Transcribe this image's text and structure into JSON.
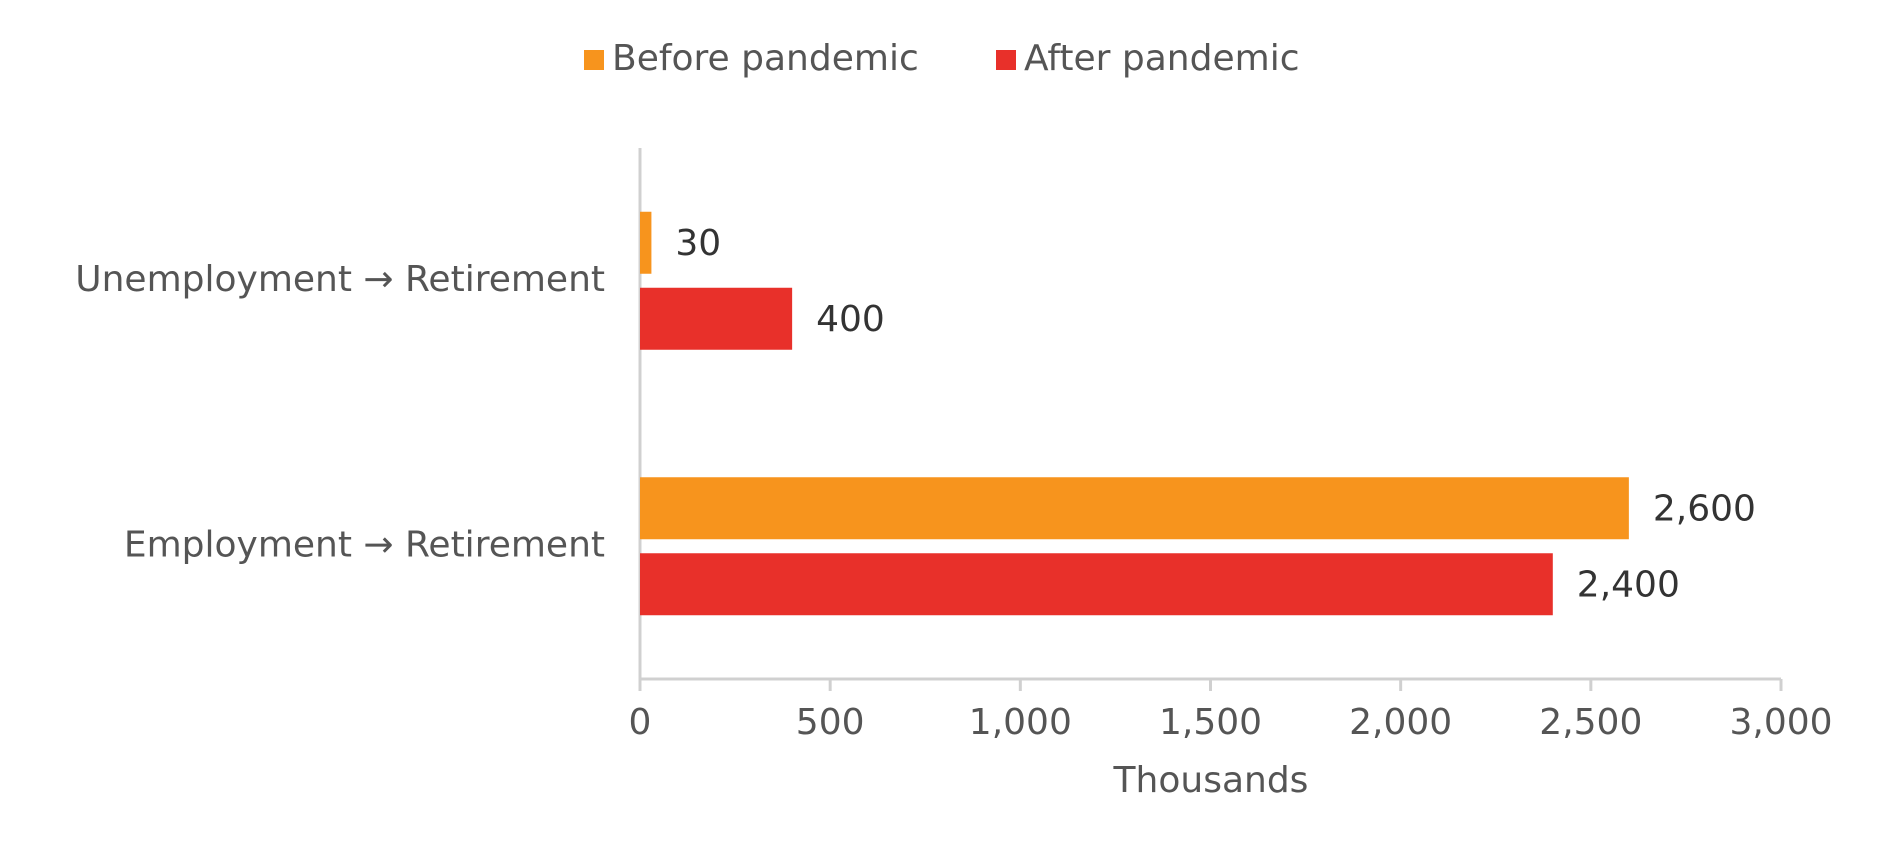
{
  "chart_data": {
    "type": "bar",
    "orientation": "horizontal",
    "categories": [
      "Unemployment → Retirement",
      "Employment → Retirement"
    ],
    "series": [
      {
        "name": "Before pandemic",
        "color": "#f7941d",
        "values": [
          30,
          2600
        ],
        "value_labels": [
          "30",
          "2,600"
        ]
      },
      {
        "name": "After pandemic",
        "color": "#e8302a",
        "values": [
          400,
          2400
        ],
        "value_labels": [
          "400",
          "2,400"
        ]
      }
    ],
    "xlabel": "Thousands",
    "xlim": [
      0,
      3000
    ],
    "xticks": [
      0,
      500,
      {
        "value": 1000,
        "label": "1,000"
      },
      {
        "value": 1500,
        "label": "1,500"
      },
      {
        "value": 2000,
        "label": "2,000"
      },
      {
        "value": 2500,
        "label": "2,500"
      },
      {
        "value": 3000,
        "label": "3,000"
      }
    ],
    "legend": "top",
    "grid": false
  }
}
